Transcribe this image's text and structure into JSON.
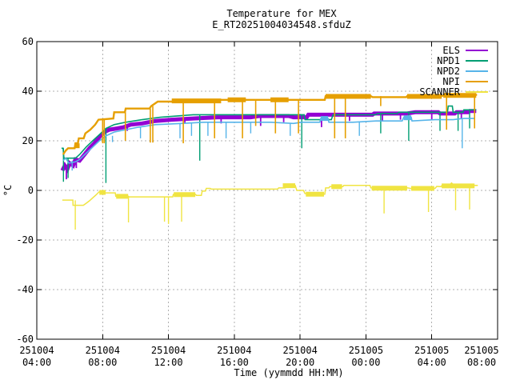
{
  "title": "Temperature for MEX",
  "subtitle": "E_RT20251004034548.sfduZ",
  "xlabel": "Time (yymmdd HH:MM)",
  "ylabel": "°C",
  "chart_data": {
    "type": "line",
    "title": "Temperature for MEX",
    "subtitle": "E_RT20251004034548.sfduZ",
    "xlabel": "Time (yymmdd HH:MM)",
    "ylabel": "°C",
    "x_unit": "hours since 2025-10-04 00:00",
    "xlim": [
      4,
      32
    ],
    "ylim": [
      -60,
      60
    ],
    "grid": true,
    "legend_position": "top-right",
    "grid_color": "#b0b0b0",
    "x_ticks": [
      {
        "t": 4,
        "date": "251004",
        "time": "04:00"
      },
      {
        "t": 8,
        "date": "251004",
        "time": "08:00"
      },
      {
        "t": 12,
        "date": "251004",
        "time": "12:00"
      },
      {
        "t": 16,
        "date": "251004",
        "time": "16:00"
      },
      {
        "t": 20,
        "date": "251004",
        "time": "20:00"
      },
      {
        "t": 24,
        "date": "251005",
        "time": "00:00"
      },
      {
        "t": 28,
        "date": "251005",
        "time": "04:00"
      },
      {
        "t": 32,
        "date": "251005",
        "time": "08:00"
      }
    ],
    "y_ticks": [
      60,
      40,
      20,
      0,
      -20,
      -40,
      -60
    ],
    "series": [
      {
        "name": "ELS",
        "color": "#9400d3",
        "width": 5,
        "spike_w": 1.8,
        "points": [
          [
            5.55,
            8
          ],
          [
            5.7,
            10
          ],
          [
            5.85,
            8.5
          ],
          [
            6.0,
            11
          ],
          [
            6.2,
            10
          ],
          [
            6.35,
            12.5
          ],
          [
            6.6,
            12
          ],
          [
            6.9,
            14.5
          ],
          [
            7.2,
            17
          ],
          [
            7.5,
            19
          ],
          [
            7.8,
            21.5
          ],
          [
            8.1,
            23.5
          ],
          [
            8.4,
            24.5
          ],
          [
            8.9,
            25
          ],
          [
            9.3,
            25.5
          ],
          [
            9.7,
            26.5
          ],
          [
            10.4,
            27
          ],
          [
            11.2,
            28
          ],
          [
            12.2,
            28.5
          ],
          [
            13.5,
            29
          ],
          [
            15,
            29.5
          ],
          [
            17,
            29.5
          ],
          [
            17.5,
            30
          ],
          [
            19.3,
            30
          ],
          [
            19.6,
            29.5
          ],
          [
            20.4,
            29.5
          ],
          [
            20.5,
            30.5
          ],
          [
            22.5,
            30.5
          ],
          [
            24.4,
            30.5
          ],
          [
            24.5,
            31
          ],
          [
            26.5,
            31
          ],
          [
            27,
            31.5
          ],
          [
            28.4,
            31.5
          ],
          [
            28.5,
            31
          ],
          [
            29.4,
            31
          ],
          [
            29.5,
            31.5
          ],
          [
            30.2,
            31.5
          ],
          [
            30.3,
            32
          ],
          [
            30.7,
            32
          ]
        ],
        "spikes": [
          [
            5.8,
            8,
            4.5
          ],
          [
            6.4,
            12,
            9
          ],
          [
            9.5,
            26,
            24
          ],
          [
            13,
            29,
            27
          ],
          [
            15.2,
            29.5,
            27
          ],
          [
            17.6,
            30,
            26
          ],
          [
            19,
            30,
            27.5
          ],
          [
            21.3,
            30.5,
            25.5
          ],
          [
            23,
            30.5,
            28
          ],
          [
            25,
            31,
            28
          ],
          [
            26.1,
            31,
            28.5
          ],
          [
            28,
            31.5,
            28.5
          ],
          [
            29.8,
            31.5,
            29
          ]
        ],
        "bands": []
      },
      {
        "name": "NPD1",
        "color": "#009e73",
        "width": 1.6,
        "spike_w": 1.4,
        "points": [
          [
            5.5,
            17
          ],
          [
            5.6,
            17
          ],
          [
            5.65,
            13
          ],
          [
            6.35,
            13
          ],
          [
            6.6,
            14.5
          ],
          [
            7.0,
            17.5
          ],
          [
            7.4,
            20
          ],
          [
            7.8,
            22.5
          ],
          [
            8.2,
            25
          ],
          [
            8.7,
            26.5
          ],
          [
            9.4,
            27.5
          ],
          [
            10.4,
            28.5
          ],
          [
            11.5,
            29.5
          ],
          [
            13.5,
            30.5
          ],
          [
            18.3,
            30.5
          ],
          [
            20.25,
            30.5
          ],
          [
            20.3,
            28.5
          ],
          [
            21.9,
            28.5
          ],
          [
            22.0,
            30.5
          ],
          [
            24.6,
            30.5
          ],
          [
            24.7,
            31
          ],
          [
            25.9,
            31
          ],
          [
            26.0,
            31.5
          ],
          [
            28.3,
            31.5
          ],
          [
            28.95,
            31.5
          ],
          [
            29.0,
            34
          ],
          [
            29.25,
            34
          ],
          [
            29.3,
            31.5
          ],
          [
            29.9,
            31.5
          ],
          [
            29.95,
            32.5
          ],
          [
            30.7,
            32.5
          ]
        ],
        "spikes": [
          [
            5.62,
            17,
            3.5
          ],
          [
            5.9,
            13,
            5
          ],
          [
            8.2,
            25,
            3
          ],
          [
            13.9,
            30.5,
            12
          ],
          [
            20.1,
            30.5,
            17
          ],
          [
            24.9,
            31,
            23
          ],
          [
            26.6,
            31.5,
            20
          ],
          [
            28.5,
            31.5,
            24
          ],
          [
            29.6,
            31.5,
            24
          ],
          [
            30.3,
            32.5,
            25
          ]
        ],
        "bands": []
      },
      {
        "name": "NPD2",
        "color": "#56b4e9",
        "width": 1.6,
        "spike_w": 1.4,
        "points": [
          [
            5.6,
            12
          ],
          [
            5.75,
            13
          ],
          [
            5.95,
            11
          ],
          [
            6.35,
            11.5
          ],
          [
            6.6,
            12.5
          ],
          [
            7.0,
            15
          ],
          [
            7.4,
            17.5
          ],
          [
            7.8,
            20
          ],
          [
            8.2,
            22
          ],
          [
            8.7,
            23.5
          ],
          [
            9.4,
            24.5
          ],
          [
            10.2,
            25.5
          ],
          [
            11.2,
            26.5
          ],
          [
            12.8,
            27
          ],
          [
            14.2,
            27.5
          ],
          [
            18.2,
            27.5
          ],
          [
            19.6,
            27
          ],
          [
            20.1,
            27.5
          ],
          [
            21.2,
            27.5
          ],
          [
            21.25,
            29
          ],
          [
            21.7,
            29
          ],
          [
            21.75,
            27.5
          ],
          [
            23.2,
            27.5
          ],
          [
            24.6,
            28
          ],
          [
            26.2,
            28
          ],
          [
            26.3,
            29.5
          ],
          [
            26.75,
            29.5
          ],
          [
            26.8,
            28
          ],
          [
            28.2,
            28.5
          ],
          [
            29.3,
            28.5
          ],
          [
            29.9,
            29
          ],
          [
            30.6,
            29
          ]
        ],
        "spikes": [
          [
            6.15,
            12,
            8
          ],
          [
            8.6,
            22,
            19.5
          ],
          [
            10.3,
            25.5,
            21
          ],
          [
            12.7,
            27,
            21
          ],
          [
            13.4,
            27,
            22
          ],
          [
            14.4,
            27.5,
            22
          ],
          [
            15.5,
            27.5,
            21
          ],
          [
            17,
            27.5,
            23
          ],
          [
            19.4,
            27,
            22
          ],
          [
            23.6,
            27.5,
            22
          ],
          [
            29.85,
            29,
            17
          ]
        ],
        "bands": [
          [
            21.25,
            21.7,
            29
          ],
          [
            26.3,
            26.75,
            29.3
          ]
        ]
      },
      {
        "name": "NPI",
        "color": "#e69f00",
        "width": 2.4,
        "spike_w": 1.6,
        "points": [
          [
            5.6,
            14.5
          ],
          [
            5.75,
            16
          ],
          [
            5.9,
            17
          ],
          [
            6.3,
            17
          ],
          [
            6.35,
            19
          ],
          [
            6.5,
            19
          ],
          [
            6.55,
            21
          ],
          [
            6.85,
            21
          ],
          [
            6.95,
            23
          ],
          [
            7.25,
            24.5
          ],
          [
            7.55,
            26.5
          ],
          [
            7.75,
            28.5
          ],
          [
            8.65,
            29
          ],
          [
            8.7,
            31.5
          ],
          [
            9.35,
            31.5
          ],
          [
            9.4,
            33
          ],
          [
            10.85,
            33
          ],
          [
            10.95,
            34
          ],
          [
            11.35,
            35.8
          ],
          [
            12.95,
            35.8
          ],
          [
            13.0,
            36
          ],
          [
            14.9,
            36.3
          ],
          [
            15.0,
            36.5
          ],
          [
            21.5,
            36.5
          ],
          [
            21.55,
            38
          ],
          [
            24.3,
            38
          ],
          [
            24.4,
            37.6
          ],
          [
            26.45,
            37.6
          ],
          [
            26.5,
            38
          ],
          [
            28.6,
            38
          ],
          [
            28.7,
            38.3
          ],
          [
            30.3,
            38.3
          ],
          [
            30.4,
            38.5
          ],
          [
            30.75,
            38.5
          ]
        ],
        "spikes": [
          [
            8.0,
            28.5,
            19
          ],
          [
            8.1,
            29,
            19
          ],
          [
            9.38,
            31.5,
            20
          ],
          [
            10.9,
            33,
            19.3
          ],
          [
            11.05,
            34,
            19.3
          ],
          [
            12.9,
            35.8,
            19
          ],
          [
            14.8,
            36.3,
            21
          ],
          [
            16.5,
            36.5,
            21
          ],
          [
            17.3,
            36.5,
            26
          ],
          [
            18.5,
            36.5,
            23
          ],
          [
            19.9,
            36.5,
            23
          ],
          [
            22.1,
            38,
            21
          ],
          [
            22.75,
            38,
            21
          ],
          [
            24.9,
            38,
            34
          ],
          [
            28.9,
            38,
            24.5
          ],
          [
            30.6,
            38.5,
            25
          ]
        ],
        "bands": [
          [
            6.3,
            6.6,
            18
          ],
          [
            12.2,
            15.2,
            36.1
          ],
          [
            15.6,
            16.7,
            36.5
          ],
          [
            18.2,
            19.3,
            36.5
          ],
          [
            21.55,
            24.3,
            37.9
          ],
          [
            26.5,
            28.6,
            37.9
          ],
          [
            28.7,
            30.7,
            38.3
          ]
        ]
      },
      {
        "name": "SCANNER",
        "color": "#f0e442",
        "width": 1.5,
        "spike_w": 1.4,
        "points": [
          [
            5.55,
            -3.9
          ],
          [
            6.19,
            -3.9
          ],
          [
            6.2,
            -6
          ],
          [
            6.83,
            -6
          ],
          [
            7.0,
            -5.2
          ],
          [
            7.2,
            -4.2
          ],
          [
            7.4,
            -3
          ],
          [
            7.6,
            -1.8
          ],
          [
            7.78,
            -0.6
          ],
          [
            8.18,
            -1
          ],
          [
            8.77,
            -1
          ],
          [
            8.8,
            -2.4
          ],
          [
            9.57,
            -2.4
          ],
          [
            9.6,
            -2.6
          ],
          [
            12.26,
            -2.6
          ],
          [
            12.3,
            -1.6
          ],
          [
            13.65,
            -1.6
          ],
          [
            13.7,
            -2
          ],
          [
            14.0,
            -2
          ],
          [
            14.05,
            -0.3
          ],
          [
            14.24,
            -0.3
          ],
          [
            14.3,
            0.8
          ],
          [
            14.54,
            0.8
          ],
          [
            14.6,
            0.5
          ],
          [
            18.62,
            0.5
          ],
          [
            18.7,
            1
          ],
          [
            19.1,
            1
          ],
          [
            19.2,
            2
          ],
          [
            19.7,
            2
          ],
          [
            19.8,
            0
          ],
          [
            20.2,
            0
          ],
          [
            20.3,
            -1.3
          ],
          [
            21.5,
            -1.5
          ],
          [
            21.55,
            1
          ],
          [
            21.75,
            1
          ],
          [
            21.8,
            1.5
          ],
          [
            22.6,
            1.5
          ],
          [
            22.65,
            2
          ],
          [
            24.24,
            2
          ],
          [
            24.3,
            1
          ],
          [
            26.55,
            1
          ],
          [
            26.7,
            0.8
          ],
          [
            28.2,
            0.8
          ],
          [
            28.3,
            1.6
          ],
          [
            28.55,
            1.5
          ],
          [
            28.7,
            2.5
          ],
          [
            29.0,
            1.5
          ],
          [
            29.2,
            3
          ],
          [
            29.45,
            1.5
          ],
          [
            29.6,
            2.5
          ],
          [
            30.0,
            1.5
          ],
          [
            30.3,
            2
          ],
          [
            30.8,
            2
          ]
        ],
        "spikes": [
          [
            6.34,
            -4,
            -15.8
          ],
          [
            9.57,
            -2.4,
            -12.9
          ],
          [
            11.76,
            -2.6,
            -12.6
          ],
          [
            12.0,
            -2.6,
            -13.5
          ],
          [
            12.8,
            -1.6,
            -12.6
          ],
          [
            25.1,
            1,
            -9.3
          ],
          [
            27.8,
            0.8,
            -8.7
          ],
          [
            29.45,
            2,
            -8
          ],
          [
            30.3,
            2,
            -7.7
          ]
        ],
        "bands": [
          [
            7.8,
            8.18,
            -0.8
          ],
          [
            8.82,
            9.55,
            -2.4
          ],
          [
            12.32,
            13.63,
            -1.7
          ],
          [
            18.95,
            19.7,
            1.9
          ],
          [
            20.35,
            21.45,
            -1.5
          ],
          [
            21.9,
            22.55,
            1.5
          ],
          [
            24.35,
            26.5,
            0.9
          ],
          [
            26.75,
            28.15,
            0.8
          ],
          [
            28.6,
            30.6,
            1.8
          ]
        ]
      }
    ]
  }
}
